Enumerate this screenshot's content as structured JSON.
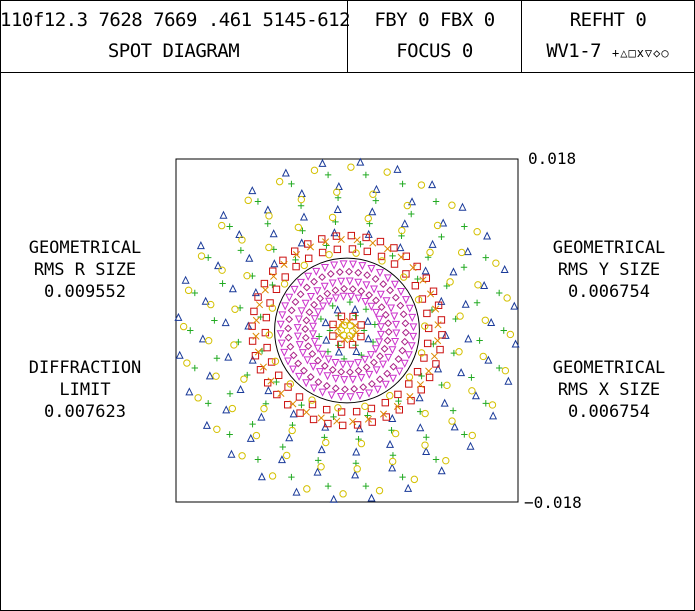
{
  "header": {
    "id_line": "110f12.3 7628 7669 .461 5145-612",
    "title": "SPOT DIAGRAM",
    "fby_fbx": "FBY 0 FBX 0",
    "focus": "FOCUS 0",
    "refht": "REFHT 0",
    "wavelengths": "WV1-7",
    "wavelength_markers": "+△□x▽◇○"
  },
  "left_labels": {
    "geo_title_1": "GEOMETRICAL",
    "geo_title_2": "RMS R SIZE",
    "geo_value": "0.009552",
    "diff_title_1": "DIFFRACTION",
    "diff_title_2": "LIMIT",
    "diff_value": "0.007623"
  },
  "right_labels": {
    "y_title_1": "GEOMETRICAL",
    "y_title_2": "RMS Y SIZE",
    "y_value": "0.006754",
    "x_title_1": "GEOMETRICAL",
    "x_title_2": "RMS X SIZE",
    "x_value": "0.006754"
  },
  "chart_data": {
    "type": "scatter",
    "title": "SPOT DIAGRAM",
    "ylim": [
      -0.018,
      0.018
    ],
    "xlim": [
      -0.018,
      0.018
    ],
    "y_tick_labels": [
      "0.018",
      "−0.018"
    ],
    "diffraction_circle_radius": 0.007623,
    "grid": false,
    "series": [
      {
        "marker": "plus",
        "color": "#22aa22",
        "ring_radii": [
          0.0165,
          0.014,
          0.0115,
          0.0092,
          0.003,
          0.0018
        ],
        "points_per_ring": [
          26,
          22,
          20,
          16,
          10,
          6
        ]
      },
      {
        "marker": "triangle",
        "color": "#1a3a99",
        "ring_radii": [
          0.0178,
          0.0152,
          0.0128,
          0.0104,
          0.0024
        ],
        "points_per_ring": [
          28,
          24,
          22,
          18,
          8
        ]
      },
      {
        "marker": "square",
        "color": "#cc1111",
        "ring_radii": [
          0.01,
          0.0086,
          0.0016
        ],
        "points_per_ring": [
          40,
          34,
          8
        ]
      },
      {
        "marker": "x",
        "color": "#dd8800",
        "ring_radii": [
          0.0096,
          0.001
        ],
        "points_per_ring": [
          36,
          8
        ]
      },
      {
        "marker": "triangle-down",
        "color": "#cc33cc",
        "ring_radii": [
          0.007,
          0.0052,
          0.0036
        ],
        "points_per_ring": [
          44,
          36,
          28
        ]
      },
      {
        "marker": "diamond",
        "color": "#aa2288",
        "ring_radii": [
          0.0062,
          0.0044
        ],
        "points_per_ring": [
          40,
          30
        ]
      },
      {
        "marker": "circle",
        "color": "#d4c000",
        "ring_radii": [
          0.0172,
          0.0146,
          0.012,
          0.0082,
          0.0006
        ],
        "points_per_ring": [
          28,
          24,
          20,
          18,
          6
        ]
      }
    ]
  }
}
